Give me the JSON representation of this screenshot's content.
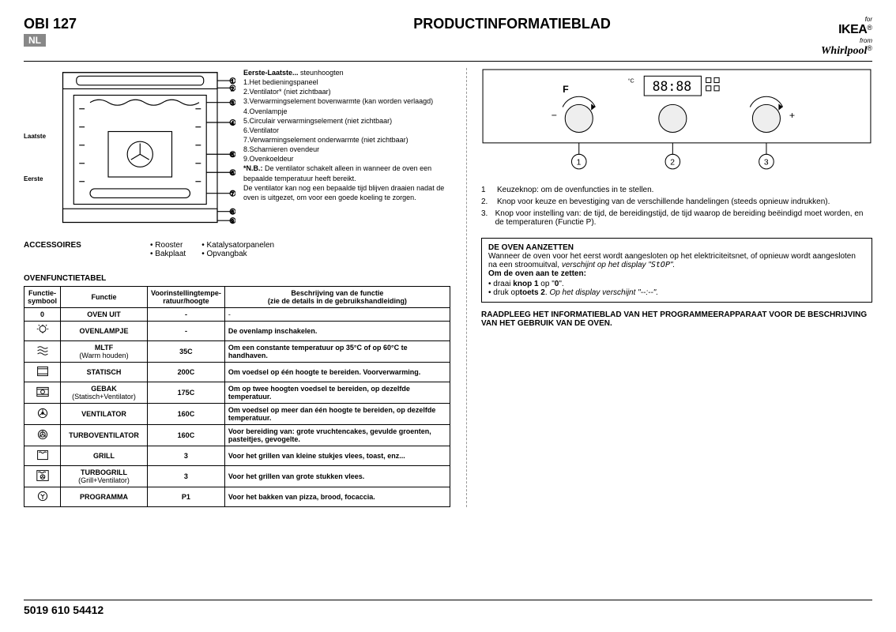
{
  "header": {
    "model": "OBI 127",
    "lang": "NL",
    "title": "PRODUCTINFORMATIEBLAD",
    "for": "for",
    "ikea": "IKEA",
    "from": "from",
    "whirlpool": "Whirlpool"
  },
  "oven": {
    "laatste": "Laatste",
    "eerste": "Eerste",
    "parts_header": "Eerste-Laatste...",
    "parts_header_suffix": " steunhoogten",
    "parts": [
      "1.Het bedieningspaneel",
      "2.Ventilator* (niet zichtbaar)",
      "3.Verwarmingselement bovenwarmte (kan worden verlaagd)",
      "4.Ovenlampje",
      "5.Circulair verwarmingselement (niet zichtbaar)",
      "6.Ventilator",
      "7.Verwarmingselement onderwarmte (niet zichtbaar)",
      "8.Scharnieren ovendeur",
      "9.Ovenkoeldeur"
    ],
    "nb_label": "*N.B.:",
    "nb_text": " De ventilator schakelt alleen in wanneer de oven een bepaalde temperatuur heeft bereikt.",
    "nb_text2": "De ventilator kan nog een bepaalde tijd blijven draaien nadat de oven is uitgezet, om voor een goede koeling te zorgen."
  },
  "accessoires": {
    "label": "ACCESSOIRES",
    "col1": [
      "Rooster",
      "Bakplaat"
    ],
    "col2": [
      "Katalysatorpanelen",
      "Opvangbak"
    ]
  },
  "table": {
    "title": "OVENFUNCTIETABEL",
    "headers": {
      "sym": "Functie-symbool",
      "func": "Functie",
      "pre": "Voorinstellingtempe-ratuur/hoogte",
      "desc": "Beschrijving van de functie",
      "desc2": "(zie de details in de gebruikshandleiding)"
    },
    "rows": [
      {
        "sym": "0",
        "func": "OVEN UIT",
        "sub": "",
        "pre": "-",
        "desc": "-"
      },
      {
        "sym": "lamp",
        "func": "OVENLAMPJE",
        "sub": "",
        "pre": "-",
        "desc": "De ovenlamp inschakelen."
      },
      {
        "sym": "waves",
        "func": "MLTF",
        "sub": "(Warm houden)",
        "pre": "35C",
        "desc": "Om een constante temperatuur op 35°C of op 60°C te handhaven."
      },
      {
        "sym": "static",
        "func": "STATISCH",
        "sub": "",
        "pre": "200C",
        "desc": "Om voedsel op één hoogte te bereiden. Voorverwarming."
      },
      {
        "sym": "gebak",
        "func": "GEBAK",
        "sub": "(Statisch+Ventilator)",
        "pre": "175C",
        "desc": "Om op twee hoogten voedsel te bereiden, op dezelfde temperatuur."
      },
      {
        "sym": "fan",
        "func": "VENTILATOR",
        "sub": "",
        "pre": "160C",
        "desc": "Om voedsel op meer dan één hoogte te bereiden, op dezelfde temperatuur."
      },
      {
        "sym": "turbofan",
        "func": "TURBOVENTILATOR",
        "sub": "",
        "pre": "160C",
        "desc": "Voor bereiding van: grote vruchtencakes, gevulde groenten, pasteitjes, gevogelte."
      },
      {
        "sym": "grill",
        "func": "GRILL",
        "sub": "",
        "pre": "3",
        "desc": "Voor het grillen van kleine stukjes vlees, toast, enz..."
      },
      {
        "sym": "turbogrill",
        "func": "TURBOGRILL",
        "sub": "(Grill+Ventilator)",
        "pre": "3",
        "desc": "Voor het grillen van grote stukken vlees."
      },
      {
        "sym": "prog",
        "func": "PROGRAMMA",
        "sub": "",
        "pre": "P1",
        "desc": "Voor het bakken van pizza, brood, focaccia."
      }
    ]
  },
  "knobs": {
    "items": [
      "Keuzeknop: om de ovenfuncties in te stellen.",
      "Knop voor keuze en bevestiging van de verschillende handelingen (steeds opnieuw indrukken).",
      "Knop voor instelling van: de tijd, de bereidingstijd, de tijd waarop de bereiding beëindigd moet worden, en de temperaturen (Functie P)."
    ]
  },
  "box": {
    "title": "DE OVEN AANZETTEN",
    "line1a": "Wanneer de oven voor het eerst wordt aangesloten op het elektriciteitsnet, of opnieuw wordt aangesloten na een stroomuitval, ",
    "line1b": "verschijnt op het display \"",
    "stop": "StOP",
    "line1c": "\".",
    "line2": "Om de oven aan te zetten:",
    "b1a": "draai ",
    "b1b": "knop 1",
    "b1c": " op \"",
    "b1d": "0",
    "b1e": "\".",
    "b2a": "druk op",
    "b2b": "toets 2",
    "b2c": ". ",
    "b2d": "Op het display verschijnt \"--:--\"."
  },
  "raadpleeg": "RAADPLEEG HET INFORMATIEBLAD VAN HET PROGRAMMEERAPPARAAT VOOR DE BESCHRIJVING VAN HET GEBRUIK VAN DE OVEN.",
  "footer": "5019 610 54412"
}
